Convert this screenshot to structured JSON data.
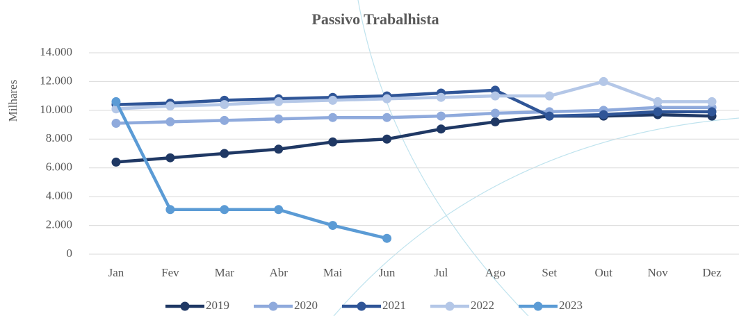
{
  "chart_data": {
    "type": "line",
    "title": "Passivo Trabalhista",
    "y_label": "Milhares",
    "categories": [
      "Jan",
      "Fev",
      "Mar",
      "Abr",
      "Mai",
      "Jun",
      "Jul",
      "Ago",
      "Set",
      "Out",
      "Nov",
      "Dez"
    ],
    "series": [
      {
        "name": "2019",
        "color": "#1f3864",
        "values": [
          6400,
          6700,
          7000,
          7300,
          7800,
          8000,
          8700,
          9200,
          9600,
          9600,
          9700,
          9600
        ]
      },
      {
        "name": "2020",
        "color": "#8faadc",
        "values": [
          9100,
          9200,
          9300,
          9400,
          9500,
          9500,
          9600,
          9800,
          9900,
          10000,
          10200,
          10200
        ]
      },
      {
        "name": "2021",
        "color": "#2f5597",
        "values": [
          10400,
          10500,
          10700,
          10800,
          10900,
          11000,
          11200,
          11400,
          9600,
          9700,
          9900,
          9900
        ]
      },
      {
        "name": "2022",
        "color": "#b4c7e7",
        "values": [
          10100,
          10300,
          10400,
          10600,
          10700,
          10800,
          10900,
          11000,
          11000,
          12000,
          10600,
          10600
        ]
      },
      {
        "name": "2023",
        "color": "#5b9bd5",
        "values": [
          10600,
          3100,
          3100,
          3100,
          2000,
          1100,
          null,
          null,
          null,
          null,
          null,
          null
        ]
      }
    ],
    "ylim": [
      0,
      14000
    ],
    "yticks": [
      0,
      {
        "value": 2000,
        "label": "2.000"
      },
      {
        "value": 4000,
        "label": "4.000"
      },
      {
        "value": 6000,
        "label": "6.000"
      },
      {
        "value": 8000,
        "label": "8.000"
      },
      {
        "value": 10000,
        "label": "10.000"
      },
      {
        "value": 12000,
        "label": "12.000"
      },
      {
        "value": 14000,
        "label": "14.000"
      }
    ],
    "grid": true,
    "legend": "bottom"
  }
}
